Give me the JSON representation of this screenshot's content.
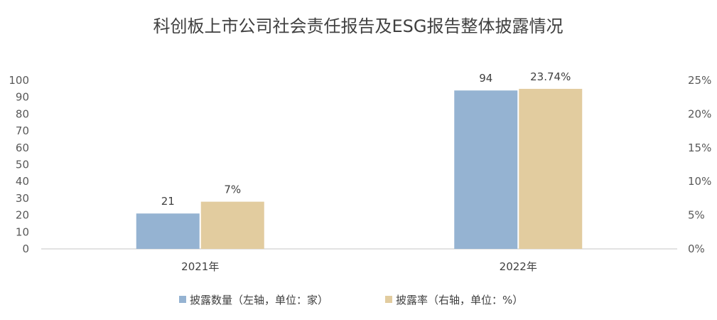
{
  "chart_data": {
    "type": "bar",
    "title": "科创板上市公司社会责任报告及ESG报告整体披露情况",
    "categories": [
      "2021年",
      "2022年"
    ],
    "series": [
      {
        "name": "披露数量（左轴，单位：家）",
        "axis": "left",
        "color": "#95b3d2",
        "values": [
          21,
          94
        ],
        "labels": [
          "21",
          "94"
        ]
      },
      {
        "name": "披露率（右轴，单位：%）",
        "axis": "right",
        "color": "#e2cc9f",
        "values": [
          7,
          23.74
        ],
        "labels": [
          "7%",
          "23.74%"
        ]
      }
    ],
    "y_left": {
      "min": 0,
      "max": 100,
      "step": 10,
      "ticks": [
        "0",
        "10",
        "20",
        "30",
        "40",
        "50",
        "60",
        "70",
        "80",
        "90",
        "100"
      ]
    },
    "y_right": {
      "min": 0,
      "max": 25,
      "step": 5,
      "ticks": [
        "0%",
        "5%",
        "10%",
        "15%",
        "20%",
        "25%"
      ]
    },
    "grid": false,
    "legend_position": "bottom"
  }
}
